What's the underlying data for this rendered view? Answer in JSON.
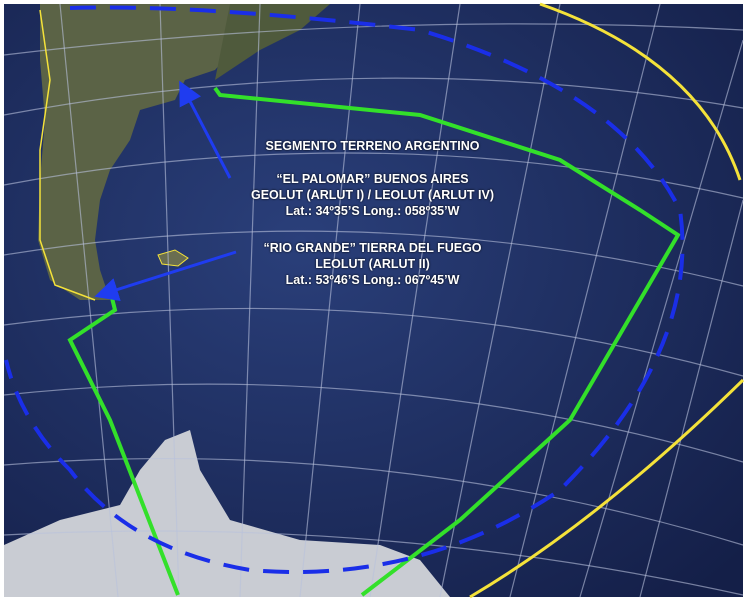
{
  "title": "SEGMENTO TERRENO ARGENTINO",
  "stations": [
    {
      "name": "“EL PALOMAR” BUENOS AIRES",
      "type": "GEOLUT (ARLUT I) / LEOLUT (ARLUT IV)",
      "coords": "Lat.: 34º35’S Long.: 058º35’W"
    },
    {
      "name": "“RIO GRANDE” TIERRA DEL FUEGO",
      "type": "LEOLUT (ARLUT II)",
      "coords": "Lat.: 53º46’S Long.: 067º45’W"
    }
  ],
  "colors": {
    "ocean": "#1b2a5c",
    "coverage_green": "#33e02a",
    "boundary_yellow": "#f4e23a",
    "coverage_dashed_blue": "#1a2ee8",
    "arrow_blue": "#1f3cf0"
  }
}
